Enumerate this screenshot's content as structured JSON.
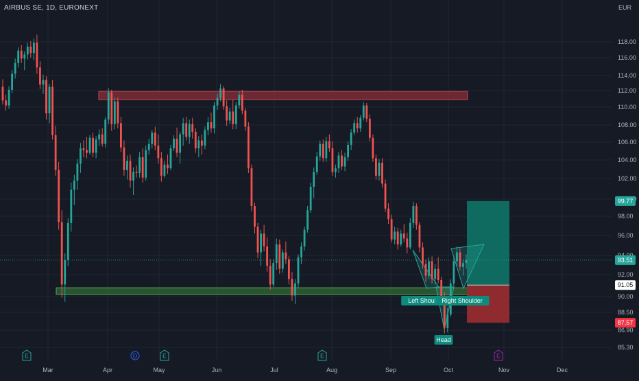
{
  "header": {
    "title": "AIRBUS SE, 1D, EURONEXT",
    "currency": "EUR"
  },
  "chart_data": {
    "type": "candlestick",
    "symbol": "AIRBUS SE",
    "interval": "1D",
    "exchange": "EURONEXT",
    "currency": "EUR",
    "x_tick_labels": [
      "Mar",
      "Apr",
      "May",
      "Jun",
      "Jul",
      "Aug",
      "Sep",
      "Oct",
      "Nov",
      "Dec"
    ],
    "y_tick_labels": [
      "118.00",
      "116.00",
      "114.00",
      "112.00",
      "110.00",
      "108.00",
      "106.00",
      "104.00",
      "102.00",
      "100.00",
      "98.00",
      "96.00",
      "94.00",
      "92.00",
      "90.00",
      "88.50",
      "86.90",
      "85.30"
    ],
    "ylim": [
      84.5,
      120.5
    ],
    "price_labels": [
      {
        "value": "99.77",
        "kind": "target",
        "price": 99.77,
        "color": "#26a69a"
      },
      {
        "value": "93.51",
        "kind": "last",
        "price": 93.51,
        "color": "#26a69a"
      },
      {
        "value": "91.05",
        "kind": "entry",
        "price": 91.05,
        "color": "#ffffff"
      },
      {
        "value": "87.57",
        "kind": "stop",
        "price": 87.57,
        "color": "#f23645"
      }
    ],
    "zones": [
      {
        "kind": "resistance",
        "top": 111.9,
        "bottom": 110.9,
        "color": "#8c2f39"
      },
      {
        "kind": "support",
        "top": 90.8,
        "bottom": 90.2,
        "color": "#2e5e34"
      }
    ],
    "position": {
      "type": "long",
      "entry": 91.05,
      "target": 99.77,
      "stop": 87.57
    },
    "annotations": [
      {
        "label": "Left Shoulder",
        "price": 89.7
      },
      {
        "label": "Head",
        "price": 86.3
      },
      {
        "label": "Right Shoulder",
        "price": 89.7
      }
    ],
    "event_markers": [
      {
        "label": "E",
        "color": "#26a69a"
      },
      {
        "label": "D",
        "color": "#2962ff"
      },
      {
        "label": "E",
        "color": "#26a69a"
      },
      {
        "label": "E",
        "color": "#26a69a"
      },
      {
        "label": "E",
        "color": "#9c27b0"
      }
    ],
    "candles": [
      [
        112.5,
        113.5,
        110.3,
        110.8
      ],
      [
        110.8,
        111.5,
        109.6,
        110.2
      ],
      [
        110.2,
        112.6,
        109.8,
        112.1
      ],
      [
        112.1,
        114.6,
        111.7,
        114.2
      ],
      [
        114.2,
        115.9,
        113.6,
        115.4
      ],
      [
        115.4,
        117.3,
        114.9,
        116.9
      ],
      [
        116.9,
        117.6,
        115.4,
        115.9
      ],
      [
        115.9,
        116.8,
        114.6,
        116.4
      ],
      [
        116.4,
        117.9,
        115.8,
        117.4
      ],
      [
        117.4,
        118.1,
        116.0,
        116.6
      ],
      [
        116.6,
        118.4,
        115.7,
        117.9
      ],
      [
        117.9,
        118.9,
        114.2,
        114.9
      ],
      [
        114.9,
        115.6,
        112.2,
        112.8
      ],
      [
        112.8,
        114.1,
        111.6,
        113.4
      ],
      [
        113.4,
        113.9,
        108.6,
        109.3
      ],
      [
        109.3,
        112.9,
        108.2,
        112.5
      ],
      [
        112.5,
        113.4,
        106.3,
        106.8
      ],
      [
        106.8,
        107.9,
        102.3,
        102.9
      ],
      [
        102.9,
        103.8,
        96.6,
        97.4
      ],
      [
        97.4,
        98.7,
        89.9,
        91.1
      ],
      [
        91.1,
        94.2,
        89.5,
        93.5
      ],
      [
        93.5,
        97.8,
        92.9,
        97.3
      ],
      [
        97.3,
        101.6,
        96.4,
        100.9
      ],
      [
        100.9,
        102.4,
        99.3,
        101.8
      ],
      [
        101.8,
        104.1,
        100.9,
        103.6
      ],
      [
        103.6,
        105.9,
        102.6,
        105.3
      ],
      [
        105.3,
        106.2,
        104.3,
        105.1
      ],
      [
        105.1,
        106.6,
        104.2,
        104.8
      ],
      [
        104.8,
        106.8,
        104.6,
        106.5
      ],
      [
        106.5,
        107.1,
        104.3,
        104.8
      ],
      [
        104.8,
        106.7,
        104.2,
        106.3
      ],
      [
        106.3,
        107.5,
        105.6,
        106.9
      ],
      [
        106.9,
        107.6,
        105.5,
        105.8
      ],
      [
        105.8,
        108.9,
        105.4,
        108.6
      ],
      [
        108.6,
        112.3,
        108.1,
        111.8
      ],
      [
        111.8,
        112.1,
        107.3,
        108.1
      ],
      [
        108.1,
        111.2,
        107.5,
        110.7
      ],
      [
        110.7,
        111.2,
        107.6,
        108.2
      ],
      [
        108.2,
        108.9,
        104.9,
        105.4
      ],
      [
        105.4,
        106.2,
        102.3,
        102.9
      ],
      [
        102.9,
        104.5,
        101.9,
        103.9
      ],
      [
        103.9,
        104.6,
        101.1,
        101.8
      ],
      [
        101.8,
        103.2,
        100.4,
        102.7
      ],
      [
        102.7,
        103.4,
        102.1,
        102.6
      ],
      [
        102.6,
        104.9,
        102.1,
        104.3
      ],
      [
        104.3,
        105.3,
        101.6,
        102.1
      ],
      [
        102.1,
        105.6,
        101.8,
        105.1
      ],
      [
        105.1,
        106.4,
        104.6,
        105.8
      ],
      [
        105.8,
        107.4,
        105.3,
        107.1
      ],
      [
        107.1,
        107.8,
        105.1,
        105.6
      ],
      [
        105.6,
        106.9,
        103.6,
        104.2
      ],
      [
        104.2,
        104.9,
        101.7,
        102.3
      ],
      [
        102.3,
        103.9,
        102.1,
        103.5
      ],
      [
        103.5,
        104.6,
        102.5,
        103.1
      ],
      [
        103.1,
        105.7,
        102.9,
        105.3
      ],
      [
        105.3,
        106.8,
        105.0,
        106.4
      ],
      [
        106.4,
        107.7,
        104.3,
        104.8
      ],
      [
        104.8,
        107.2,
        103.6,
        106.9
      ],
      [
        106.9,
        108.8,
        105.6,
        108.2
      ],
      [
        108.2,
        108.9,
        106.2,
        106.6
      ],
      [
        106.6,
        108.6,
        105.8,
        108.1
      ],
      [
        108.1,
        108.8,
        106.4,
        107.2
      ],
      [
        107.2,
        107.6,
        104.8,
        105.3
      ],
      [
        105.3,
        106.7,
        104.3,
        106.2
      ],
      [
        106.2,
        106.9,
        104.6,
        105.6
      ],
      [
        105.6,
        107.8,
        105.2,
        107.4
      ],
      [
        107.4,
        108.9,
        106.8,
        108.3
      ],
      [
        108.3,
        109.4,
        107.1,
        107.6
      ],
      [
        107.6,
        110.6,
        107.0,
        110.2
      ],
      [
        110.2,
        111.6,
        109.7,
        111.1
      ],
      [
        111.1,
        112.9,
        110.7,
        112.3
      ],
      [
        112.3,
        112.6,
        109.7,
        110.1
      ],
      [
        110.1,
        110.8,
        107.9,
        108.5
      ],
      [
        108.5,
        109.9,
        108.1,
        109.5
      ],
      [
        109.5,
        110.9,
        107.5,
        108.1
      ],
      [
        108.1,
        110.6,
        107.5,
        110.2
      ],
      [
        110.2,
        111.9,
        109.8,
        111.5
      ],
      [
        111.5,
        112.1,
        109.2,
        109.6
      ],
      [
        109.6,
        109.9,
        107.3,
        107.8
      ],
      [
        107.8,
        108.3,
        102.6,
        103.1
      ],
      [
        103.1,
        103.5,
        98.6,
        99.2
      ],
      [
        99.2,
        99.6,
        96.2,
        96.9
      ],
      [
        96.9,
        97.3,
        93.7,
        94.3
      ],
      [
        94.3,
        96.6,
        92.9,
        96.2
      ],
      [
        96.2,
        97.1,
        94.4,
        94.9
      ],
      [
        94.9,
        95.8,
        92.3,
        92.9
      ],
      [
        92.9,
        93.6,
        90.6,
        91.1
      ],
      [
        91.1,
        93.6,
        90.9,
        93.2
      ],
      [
        93.2,
        95.7,
        92.5,
        95.1
      ],
      [
        95.1,
        95.6,
        92.1,
        92.6
      ],
      [
        92.6,
        94.6,
        92.2,
        94.3
      ],
      [
        94.3,
        95.4,
        93.1,
        93.6
      ],
      [
        93.6,
        93.9,
        91.1,
        91.6
      ],
      [
        91.6,
        92.3,
        89.6,
        90.1
      ],
      [
        90.1,
        91.6,
        89.3,
        91.2
      ],
      [
        91.2,
        94.1,
        90.8,
        93.8
      ],
      [
        93.8,
        95.3,
        93.1,
        94.9
      ],
      [
        94.9,
        96.9,
        94.5,
        96.6
      ],
      [
        96.6,
        99.2,
        96.3,
        98.7
      ],
      [
        98.7,
        101.6,
        98.4,
        101.2
      ],
      [
        101.2,
        103.2,
        100.1,
        102.7
      ],
      [
        102.7,
        104.9,
        102.4,
        104.4
      ],
      [
        104.4,
        106.2,
        103.9,
        105.8
      ],
      [
        105.8,
        106.3,
        103.8,
        104.2
      ],
      [
        104.2,
        106.6,
        103.8,
        106.1
      ],
      [
        106.1,
        106.9,
        104.9,
        105.3
      ],
      [
        105.3,
        106.1,
        102.3,
        102.7
      ],
      [
        102.7,
        103.5,
        102.1,
        103.1
      ],
      [
        103.1,
        104.9,
        102.6,
        104.5
      ],
      [
        104.5,
        105.1,
        102.9,
        103.3
      ],
      [
        103.3,
        104.8,
        102.8,
        104.3
      ],
      [
        104.3,
        106.1,
        103.9,
        105.7
      ],
      [
        105.7,
        107.5,
        105.1,
        107.1
      ],
      [
        107.1,
        108.6,
        106.8,
        108.2
      ],
      [
        108.2,
        108.9,
        107.1,
        107.6
      ],
      [
        107.6,
        109.1,
        107.2,
        108.8
      ],
      [
        108.8,
        110.6,
        108.5,
        110.2
      ],
      [
        110.2,
        110.5,
        108.3,
        108.7
      ],
      [
        108.7,
        109.2,
        106.1,
        106.5
      ],
      [
        106.5,
        106.9,
        103.8,
        104.2
      ],
      [
        104.2,
        104.6,
        101.9,
        102.3
      ],
      [
        102.3,
        104.1,
        101.8,
        103.7
      ],
      [
        103.7,
        104.2,
        101.1,
        101.5
      ],
      [
        101.5,
        101.9,
        98.5,
        98.9
      ],
      [
        98.9,
        99.5,
        97.2,
        97.7
      ],
      [
        97.7,
        98.2,
        95.3,
        95.6
      ],
      [
        95.6,
        96.9,
        95.1,
        96.4
      ],
      [
        96.4,
        96.8,
        94.6,
        95.1
      ],
      [
        95.1,
        96.6,
        94.9,
        96.2
      ],
      [
        96.2,
        97.2,
        95.3,
        95.7
      ],
      [
        95.7,
        96.3,
        94.2,
        94.8
      ],
      [
        94.8,
        97.8,
        94.6,
        97.3
      ],
      [
        97.3,
        99.7,
        96.8,
        99.2
      ],
      [
        99.2,
        99.5,
        96.6,
        97.1
      ],
      [
        97.1,
        97.4,
        94.3,
        94.8
      ],
      [
        94.8,
        95.3,
        92.6,
        93.1
      ],
      [
        93.1,
        93.6,
        91.3,
        91.9
      ],
      [
        91.9,
        93.8,
        91.6,
        93.4
      ],
      [
        93.4,
        93.9,
        91.2,
        91.6
      ],
      [
        91.6,
        93.1,
        91.1,
        92.6
      ],
      [
        92.6,
        93.8,
        91.2,
        91.5
      ],
      [
        91.5,
        91.8,
        89.4,
        89.9
      ],
      [
        89.9,
        90.4,
        86.6,
        87.1
      ],
      [
        87.1,
        88.9,
        86.7,
        88.3
      ],
      [
        88.3,
        91.6,
        88.1,
        91.2
      ],
      [
        91.2,
        93.8,
        90.9,
        93.4
      ],
      [
        93.4,
        94.9,
        92.8,
        94.3
      ],
      [
        94.3,
        94.7,
        92.4,
        92.8
      ],
      [
        92.8,
        93.6,
        91.9,
        93.2
      ],
      [
        93.2,
        94.1,
        92.6,
        93.51
      ]
    ]
  }
}
